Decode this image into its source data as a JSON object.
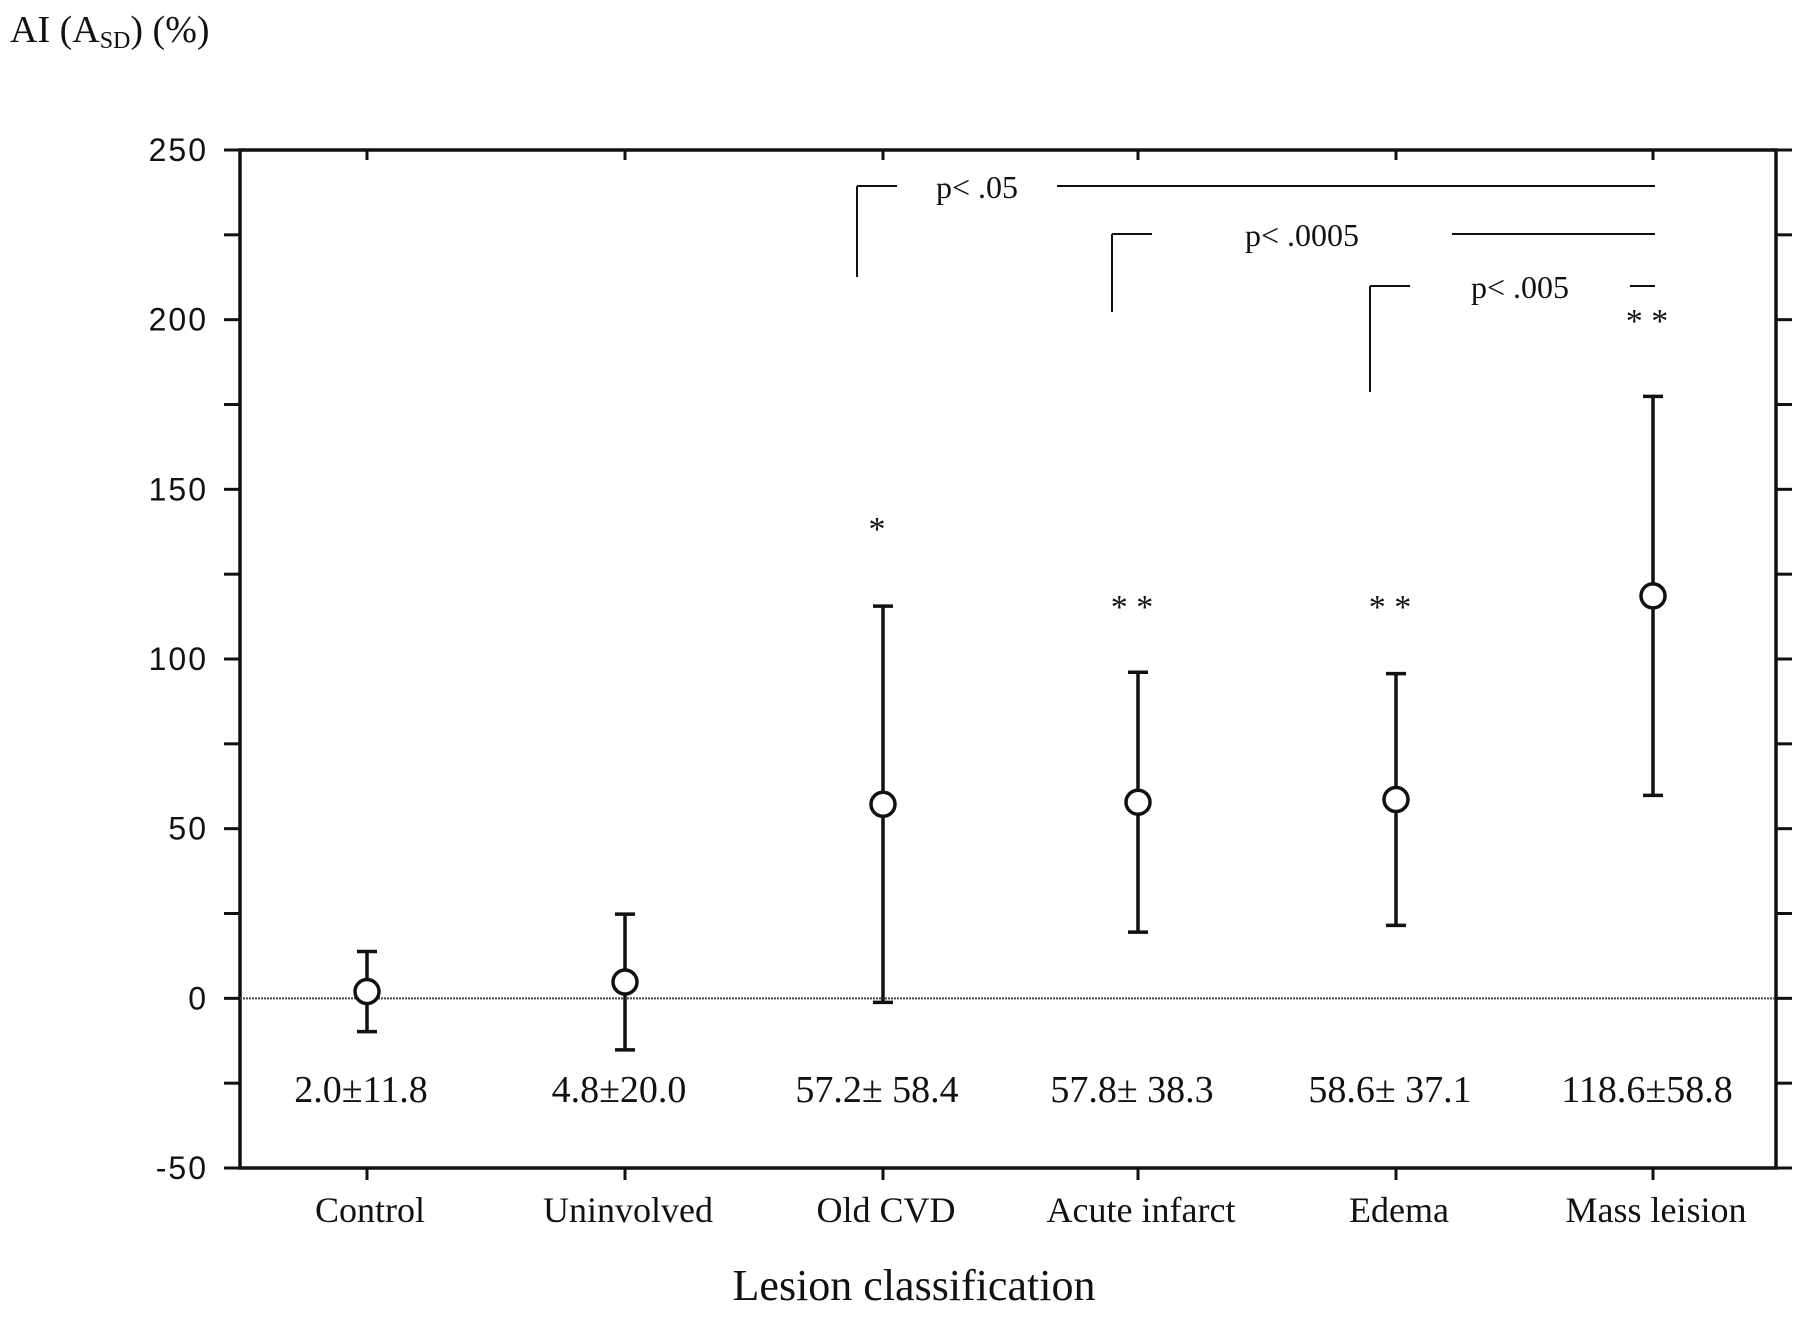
{
  "chart_data": {
    "type": "scatter",
    "ylabel_main": "AI (A",
    "ylabel_sub": "SD",
    "ylabel_tail": ") (%)",
    "xlabel": "Lesion classification",
    "ylim": [
      -50,
      250
    ],
    "yticks": [
      "250",
      "200",
      "150",
      "100",
      "50",
      "0",
      "-50"
    ],
    "ytick_values": [
      250,
      200,
      150,
      100,
      50,
      0,
      -50
    ],
    "grid": false,
    "reference_line": 0,
    "categories": [
      "Control",
      "Uninvolved",
      "Old CVD",
      "Acute infarct",
      "Edema",
      "Mass leision"
    ],
    "series": [
      {
        "values": [
          2.0,
          4.8,
          57.2,
          57.8,
          58.6,
          118.6
        ],
        "error": [
          11.8,
          20.0,
          58.4,
          38.3,
          37.1,
          58.8
        ]
      }
    ],
    "value_labels": [
      "2.0±11.8",
      "4.8±20.0",
      "57.2± 58.4",
      "57.8± 38.3",
      "58.6± 37.1",
      "118.6±58.8"
    ],
    "significance_marks": [
      "",
      "",
      "*",
      "* *",
      "* *",
      "* *"
    ],
    "comparisons": [
      {
        "label": "p< .05",
        "from": "Old CVD",
        "to": "Mass leision"
      },
      {
        "label": "p< .0005",
        "from": "Acute infarct",
        "to": "Mass leision"
      },
      {
        "label": "p< .005",
        "from": "Edema",
        "to": "Mass leision"
      }
    ]
  }
}
